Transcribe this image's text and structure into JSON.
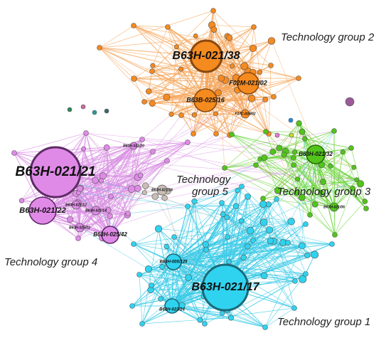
{
  "groups": {
    "g2": {
      "label": "Technology group 2",
      "color": "#f58a1f",
      "edge": "#f5a55a"
    },
    "g3": {
      "label": "Technology group 3",
      "color": "#52c41a",
      "edge": "#6cd43c"
    },
    "g5": {
      "label_line1": "Technology",
      "label_line2": "group 5",
      "color": "#c9bdb6",
      "edge": "#bdb5b0"
    },
    "g4": {
      "label": "Technology group 4",
      "color": "#e08ae8",
      "edge": "#d98ee3"
    },
    "g1": {
      "label": "Technology group 1",
      "color": "#2fd3ef",
      "edge": "#38c9e6"
    }
  },
  "hub_nodes": [
    {
      "label": "B63H-021/38",
      "group": "g2"
    },
    {
      "label": "F02M-021/02",
      "group": "g2"
    },
    {
      "label": "B63B-025/16",
      "group": "g2"
    },
    {
      "label": "B63H-021/32",
      "group": "g3"
    },
    {
      "label": "B63H-021/21",
      "group": "g4"
    },
    {
      "label": "B63H-021/22",
      "group": "g4"
    },
    {
      "label": "B63H-025/42",
      "group": "g4"
    },
    {
      "label": "B63H-021/17",
      "group": "g1"
    },
    {
      "label": "B63H-005/125",
      "group": "g1"
    },
    {
      "label": "B63H-023/24",
      "group": "g1"
    }
  ],
  "minor_labels": [
    "F17C-009/02",
    "B63H-021/16",
    "B63H-021/12",
    "B63H-021/14",
    "B63H-025/02",
    "B63H-021/20",
    "B63H-021/06"
  ]
}
